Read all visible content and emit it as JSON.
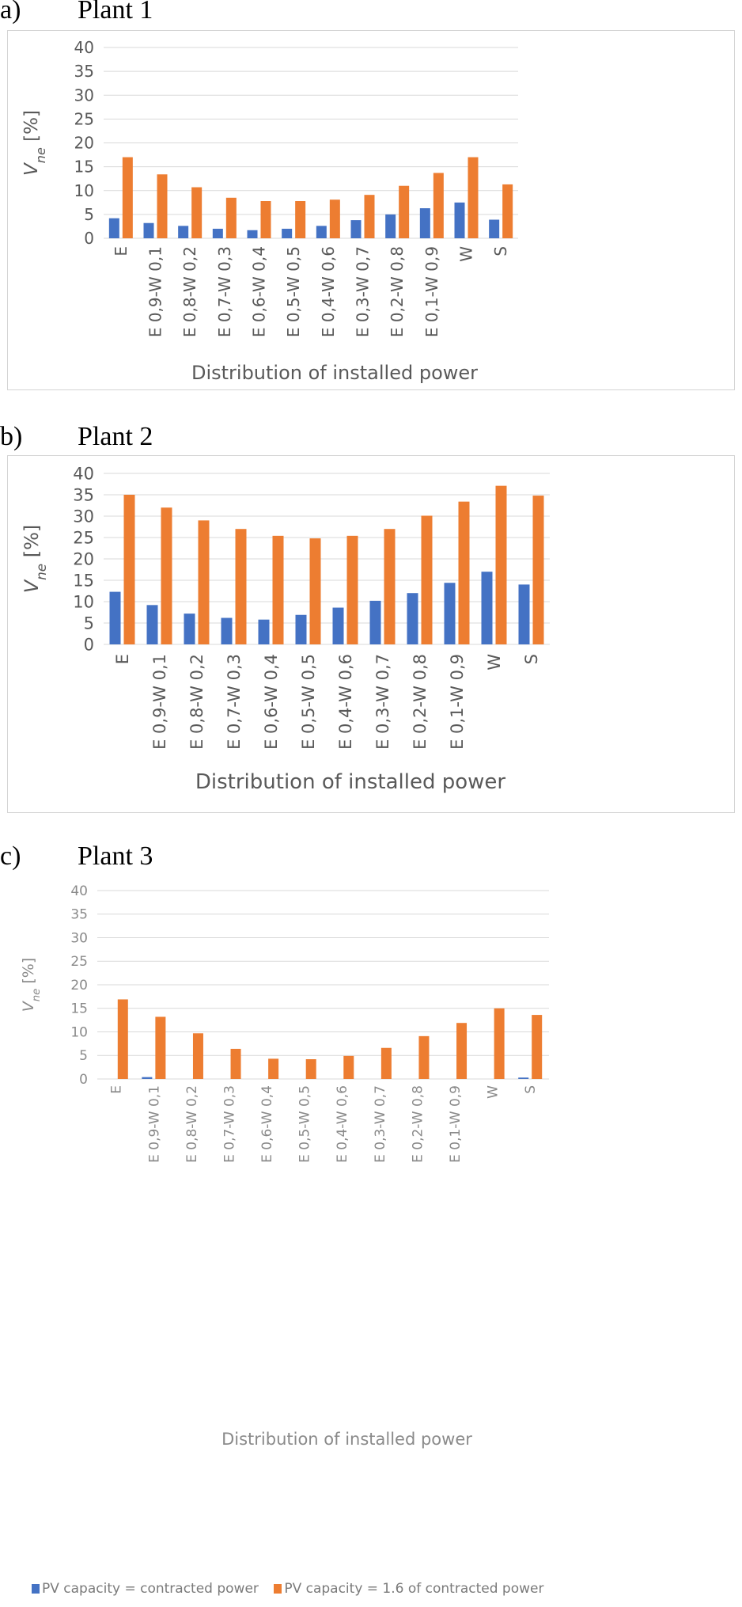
{
  "panels": [
    {
      "tag": "a)",
      "title": "Plant 1"
    },
    {
      "tag": "b)",
      "title": "Plant 2"
    },
    {
      "tag": "c)",
      "title": "Plant 3"
    }
  ],
  "legend": {
    "items": [
      {
        "label": "PV capacity = contracted power",
        "color": "#4472c4"
      },
      {
        "label": "PV capacity = 1.6 of contracted power",
        "color": "#ed7d31"
      }
    ]
  },
  "chart_data": [
    {
      "type": "bar",
      "title": "Plant 1",
      "xlabel": "Distribution of installed power",
      "ylabel_main": "V",
      "ylabel_sub": "ne",
      "ylabel_unit": " [%]",
      "ylim": [
        0,
        40
      ],
      "yticks": [
        "0",
        "5",
        "10",
        "15",
        "20",
        "25",
        "30",
        "35",
        "40"
      ],
      "grid": true,
      "categories": [
        "E",
        "E 0,9-W 0,1",
        "E 0,8-W 0,2",
        "E 0,7-W 0,3",
        "E 0,6-W 0,4",
        "E 0,5-W 0,5",
        "E 0,4-W 0,6",
        "E 0,3-W 0,7",
        "E 0,2-W 0,8",
        "E 0,1-W 0,9",
        "W",
        "S"
      ],
      "series": [
        {
          "name": "PV capacity = contracted power",
          "color": "#4472c4",
          "values": [
            4.2,
            3.2,
            2.6,
            2.0,
            1.7,
            2.0,
            2.6,
            3.8,
            5.0,
            6.3,
            7.5,
            3.9
          ]
        },
        {
          "name": "PV capacity = 1.6 of contracted power",
          "color": "#ed7d31",
          "values": [
            17.0,
            13.4,
            10.7,
            8.5,
            7.8,
            7.8,
            8.1,
            9.1,
            11.0,
            13.7,
            17.0,
            11.3
          ]
        }
      ]
    },
    {
      "type": "bar",
      "title": "Plant 2",
      "xlabel": "Distribution of installed power",
      "ylabel_main": "V",
      "ylabel_sub": "ne",
      "ylabel_unit": " [%]",
      "ylim": [
        0,
        40
      ],
      "yticks": [
        "0",
        "5",
        "10",
        "15",
        "20",
        "25",
        "30",
        "35",
        "40"
      ],
      "grid": true,
      "categories": [
        "E",
        "E 0,9-W 0,1",
        "E 0,8-W 0,2",
        "E 0,7-W 0,3",
        "E 0,6-W 0,4",
        "E 0,5-W 0,5",
        "E 0,4-W 0,6",
        "E 0,3-W 0,7",
        "E 0,2-W 0,8",
        "E 0,1-W 0,9",
        "W",
        "S"
      ],
      "series": [
        {
          "name": "PV capacity = contracted power",
          "color": "#4472c4",
          "values": [
            12.3,
            9.2,
            7.2,
            6.2,
            5.8,
            6.9,
            8.6,
            10.2,
            12.0,
            14.4,
            17.0,
            14.0
          ]
        },
        {
          "name": "PV capacity = 1.6 of contracted power",
          "color": "#ed7d31",
          "values": [
            35.0,
            32.0,
            29.0,
            27.0,
            25.4,
            24.8,
            25.4,
            27.0,
            30.1,
            33.4,
            37.1,
            34.8
          ]
        }
      ]
    },
    {
      "type": "bar",
      "title": "Plant 3",
      "xlabel": "Distribution of installed power",
      "ylabel_main": "V",
      "ylabel_sub": "ne",
      "ylabel_unit": " [%]",
      "ylim": [
        0,
        40
      ],
      "yticks": [
        "0",
        "5",
        "10",
        "15",
        "20",
        "25",
        "30",
        "35",
        "40"
      ],
      "grid": true,
      "categories": [
        "E",
        "E 0,9-W 0,1",
        "E 0,8-W 0,2",
        "E 0,7-W 0,3",
        "E 0,6-W 0,4",
        "E 0,5-W 0,5",
        "E 0,4-W 0,6",
        "E 0,3-W 0,7",
        "E 0,2-W 0,8",
        "E 0,1-W 0,9",
        "W",
        "S"
      ],
      "series": [
        {
          "name": "PV capacity = contracted power",
          "color": "#4472c4",
          "values": [
            0.0,
            0.4,
            0.0,
            0.0,
            0.0,
            0.0,
            0.0,
            0.0,
            0.0,
            0.0,
            0.0,
            0.3
          ]
        },
        {
          "name": "PV capacity = 1.6 of contracted power",
          "color": "#ed7d31",
          "values": [
            16.9,
            13.2,
            9.7,
            6.4,
            4.3,
            4.2,
            4.9,
            6.6,
            9.1,
            11.9,
            15.0,
            13.6
          ]
        }
      ]
    }
  ]
}
